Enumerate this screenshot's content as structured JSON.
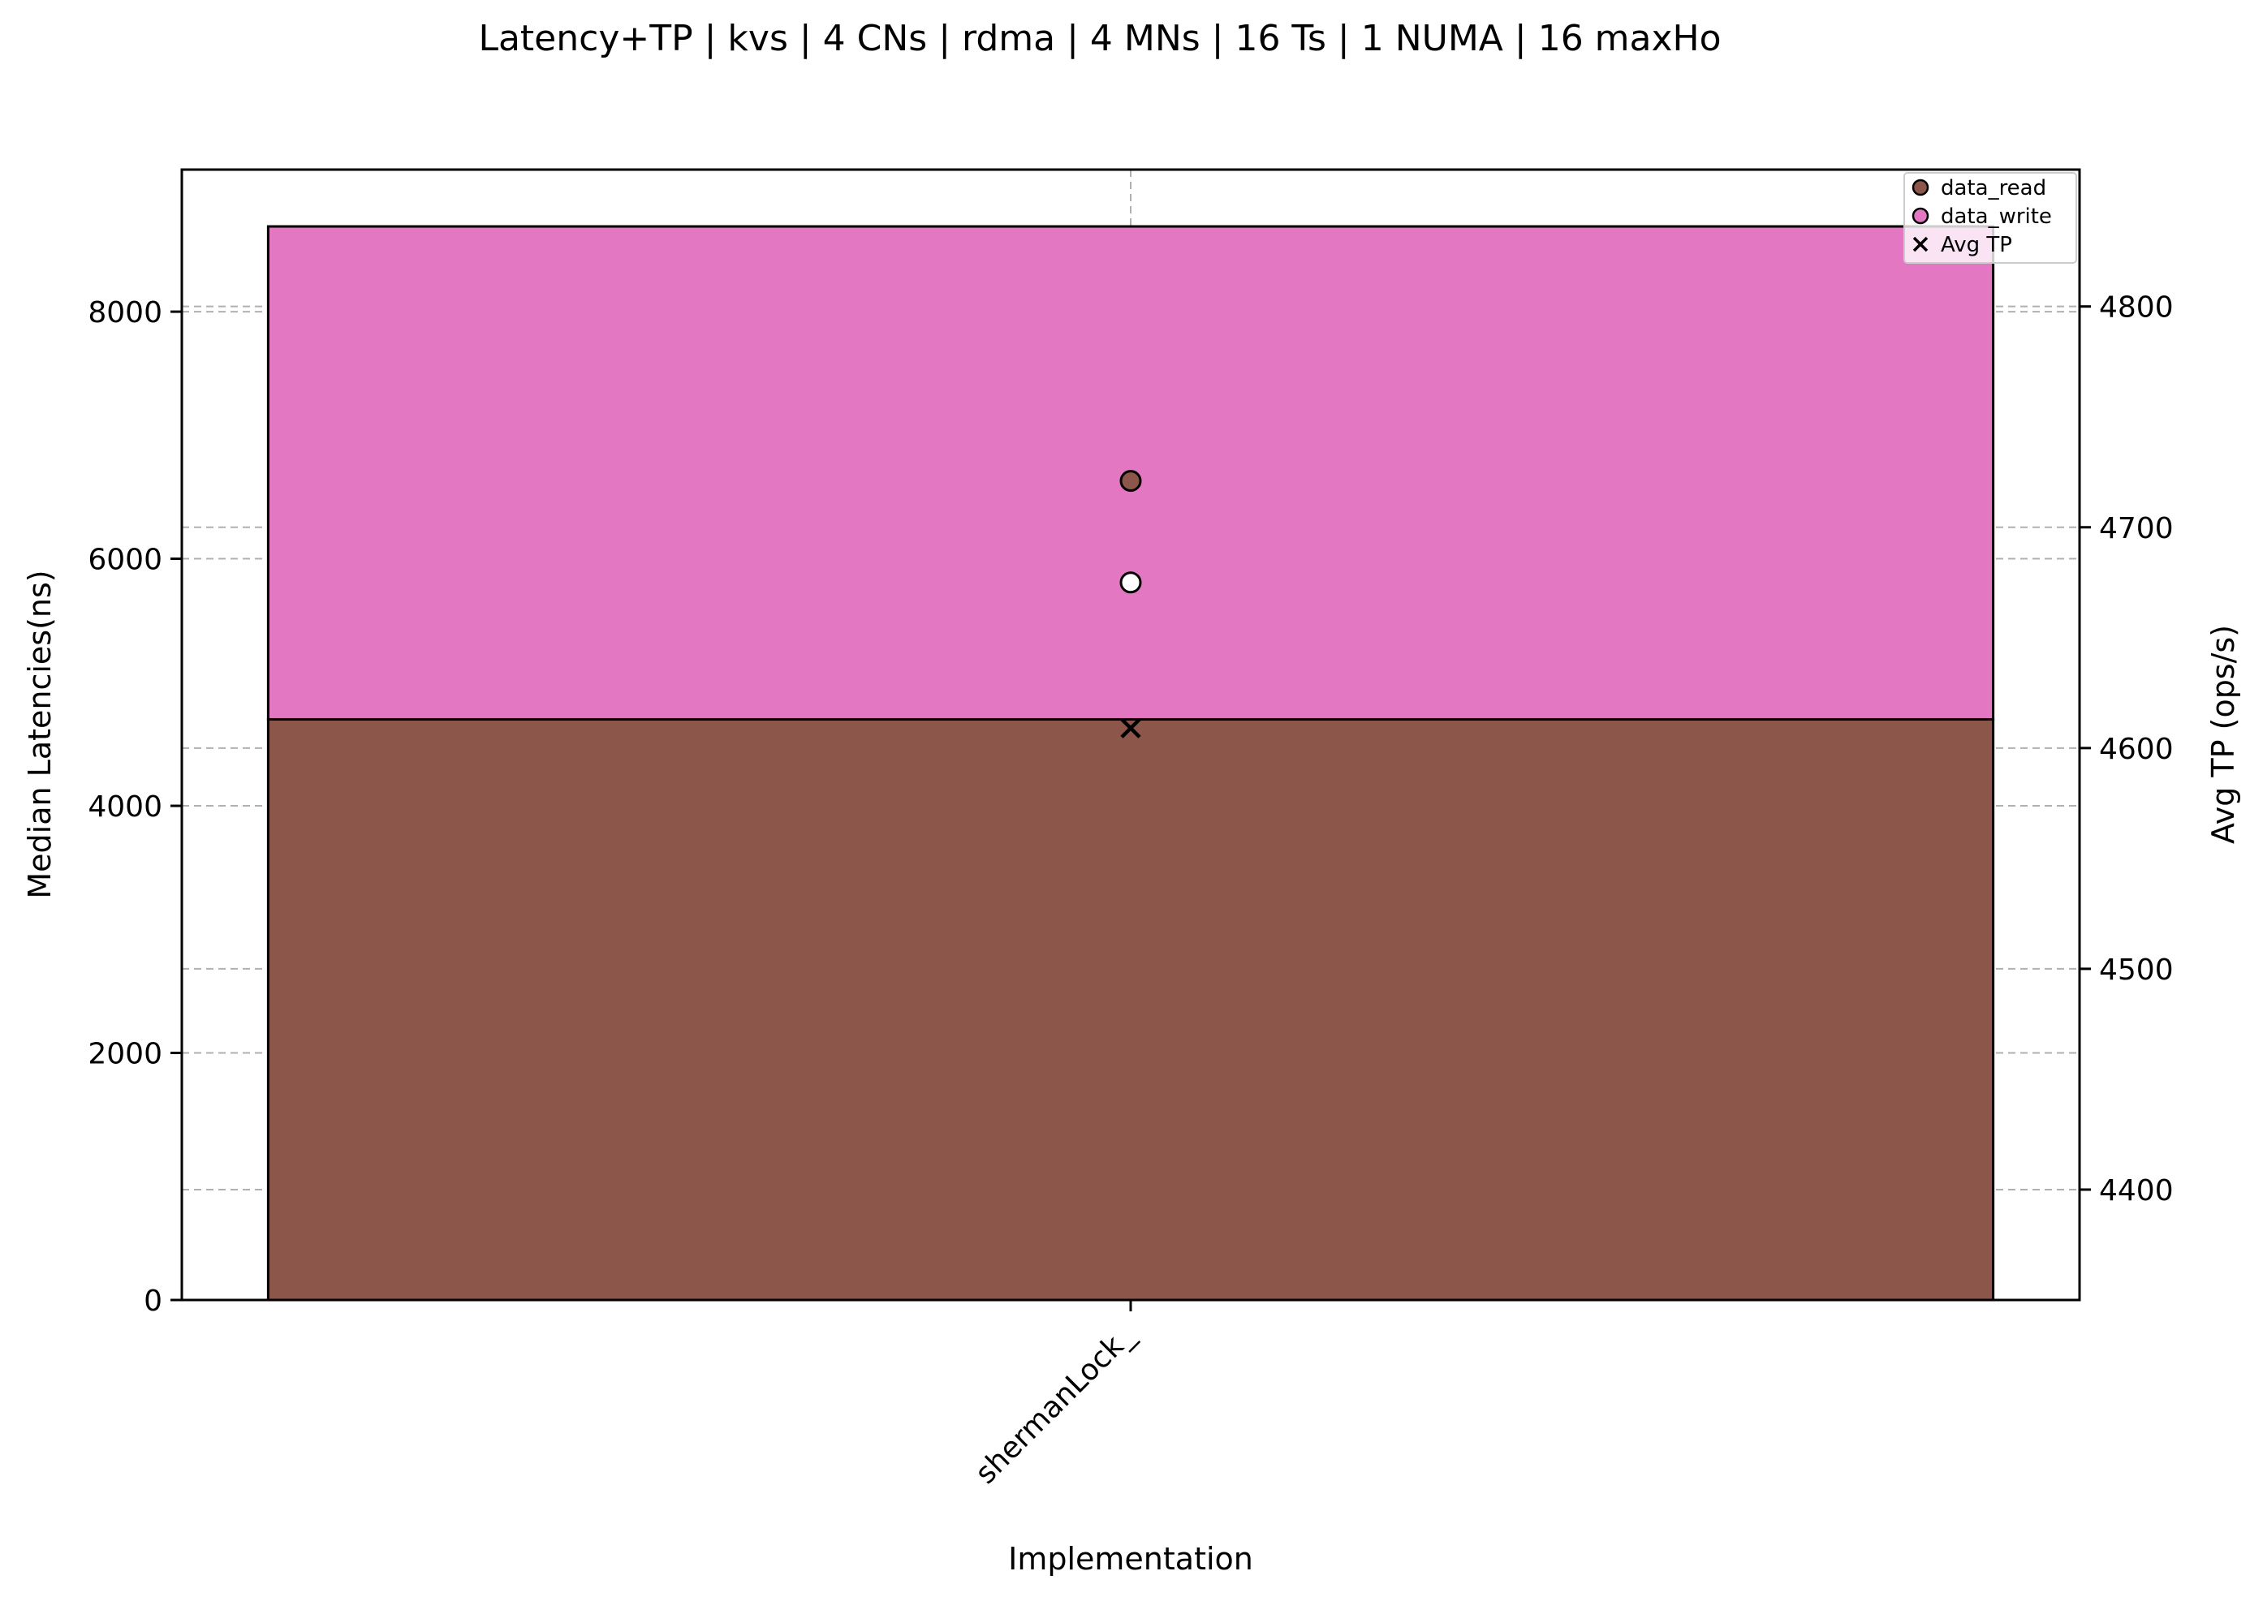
{
  "chart_data": {
    "type": "bar",
    "title": "Latency+TP | kvs | 4 CNs | rdma | 4 MNs | 16 Ts | 1 NUMA | 16 maxHo",
    "xlabel": "Implementation",
    "ylabel": "Median Latencies(ns)",
    "y2label": "Avg TP (ops/s)",
    "categories": [
      "shermanLock_"
    ],
    "stacked": true,
    "ylim": [
      0,
      9150
    ],
    "y2lim": [
      4350,
      4862
    ],
    "yticks": [
      0,
      2000,
      4000,
      6000,
      8000
    ],
    "y2ticks": [
      4400,
      4500,
      4600,
      4700,
      4800
    ],
    "grid": true,
    "legend_position": "top-right",
    "series": [
      {
        "name": "data_read",
        "values": [
          4700
        ],
        "color": "#8c564b"
      },
      {
        "name": "data_write",
        "values": [
          3990
        ],
        "color": "#e377c2"
      }
    ],
    "markers": [
      {
        "name": "data_read",
        "axis": "right",
        "values": [
          4721
        ],
        "shape": "circle",
        "fill": "#8c564b"
      },
      {
        "name": "data_write",
        "axis": "right",
        "values": [
          4675
        ],
        "shape": "circle",
        "fill": "#ffffff"
      },
      {
        "name": "Avg TP",
        "axis": "right",
        "values": [
          4609
        ],
        "shape": "x",
        "fill": "#000000"
      }
    ],
    "legend": [
      {
        "label": "data_read",
        "shape": "circle",
        "fill": "#8c564b"
      },
      {
        "label": "data_write",
        "shape": "circle",
        "fill": "#e377c2"
      },
      {
        "label": "Avg TP",
        "shape": "x",
        "fill": "#000000"
      }
    ]
  }
}
